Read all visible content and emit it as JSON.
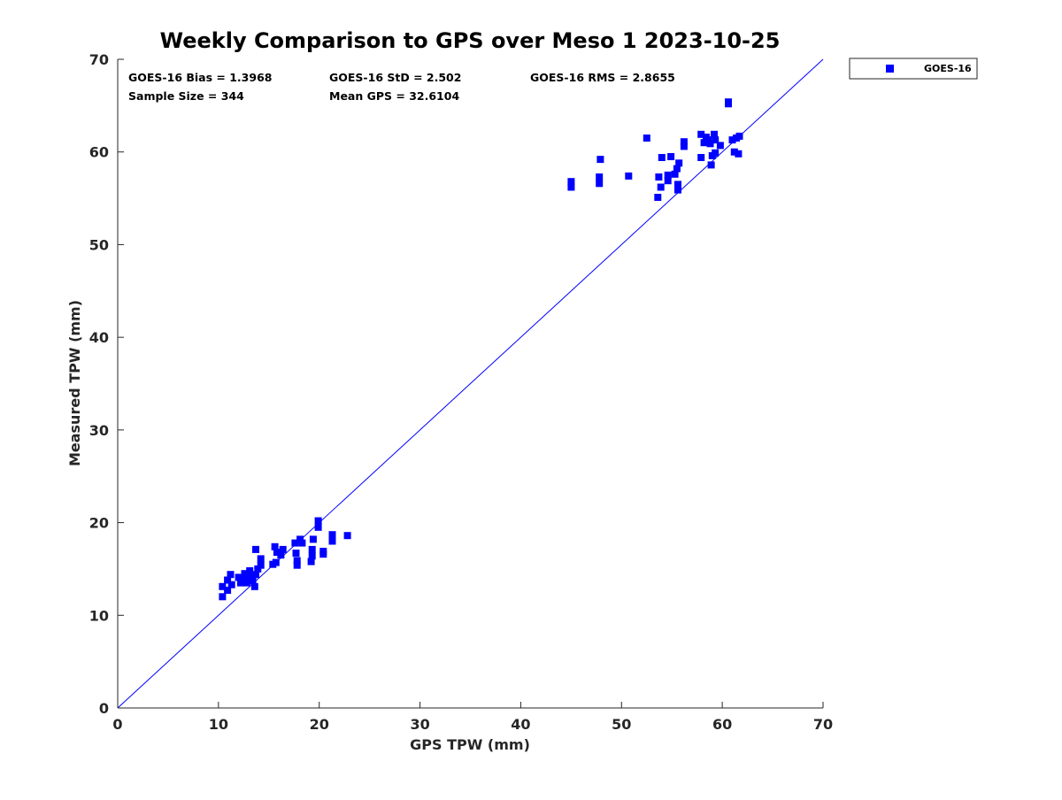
{
  "chart_data": {
    "type": "scatter",
    "title": "Weekly Comparison to GPS over Meso 1 2023-10-25",
    "xlabel": "GPS TPW (mm)",
    "ylabel": "Measured TPW (mm)",
    "xlim": [
      0,
      70
    ],
    "ylim": [
      0,
      70
    ],
    "xticks": [
      0,
      10,
      20,
      30,
      40,
      50,
      60,
      70
    ],
    "yticks": [
      0,
      10,
      20,
      30,
      40,
      50,
      60,
      70
    ],
    "xtick_labels": [
      "0",
      "10",
      "20",
      "30",
      "40",
      "50",
      "60",
      "70"
    ],
    "ytick_labels": [
      "0",
      "10",
      "20",
      "30",
      "40",
      "50",
      "60",
      "70"
    ],
    "grid": false,
    "reference_line": {
      "name": "1:1 line",
      "x": [
        0,
        70
      ],
      "y": [
        0,
        70
      ],
      "color": "#0000ff"
    },
    "legend": {
      "placement": "outside-top-right",
      "entries": [
        "GOES-16"
      ]
    },
    "stats": {
      "bias": "GOES-16 Bias = 1.3968",
      "std": "GOES-16 StD = 2.502",
      "rms": "GOES-16 RMS = 2.8655",
      "sample_size": "Sample Size = 344",
      "mean_gps": "Mean GPS = 32.6104"
    },
    "series": [
      {
        "name": "GOES-16",
        "color": "#0000ff",
        "marker": "square",
        "points": [
          [
            10.4,
            12.0
          ],
          [
            10.4,
            13.1
          ],
          [
            10.9,
            12.7
          ],
          [
            10.9,
            13.8
          ],
          [
            11.2,
            14.4
          ],
          [
            11.3,
            13.3
          ],
          [
            12.0,
            14.1
          ],
          [
            12.2,
            13.5
          ],
          [
            12.5,
            13.8
          ],
          [
            12.6,
            14.5
          ],
          [
            12.8,
            13.5
          ],
          [
            13.1,
            14.2
          ],
          [
            13.1,
            14.8
          ],
          [
            13.4,
            13.7
          ],
          [
            13.6,
            13.1
          ],
          [
            13.7,
            14.4
          ],
          [
            13.7,
            17.1
          ],
          [
            13.9,
            15.0
          ],
          [
            14.2,
            15.4
          ],
          [
            14.2,
            16.1
          ],
          [
            15.4,
            15.5
          ],
          [
            15.6,
            17.4
          ],
          [
            15.7,
            15.7
          ],
          [
            15.8,
            16.8
          ],
          [
            16.2,
            16.5
          ],
          [
            16.4,
            17.1
          ],
          [
            17.6,
            17.8
          ],
          [
            17.7,
            16.7
          ],
          [
            17.8,
            15.4
          ],
          [
            17.8,
            15.9
          ],
          [
            18.1,
            18.2
          ],
          [
            18.3,
            17.8
          ],
          [
            19.2,
            15.8
          ],
          [
            19.3,
            16.4
          ],
          [
            19.3,
            17.1
          ],
          [
            19.4,
            18.2
          ],
          [
            19.9,
            19.5
          ],
          [
            19.9,
            20.2
          ],
          [
            20.4,
            16.6
          ],
          [
            20.4,
            16.9
          ],
          [
            21.3,
            18.0
          ],
          [
            21.3,
            18.7
          ],
          [
            22.8,
            18.6
          ],
          [
            45.0,
            56.2
          ],
          [
            45.0,
            56.8
          ],
          [
            47.8,
            56.6
          ],
          [
            47.8,
            57.3
          ],
          [
            47.9,
            59.2
          ],
          [
            50.7,
            57.4
          ],
          [
            52.5,
            61.5
          ],
          [
            53.6,
            55.1
          ],
          [
            53.7,
            57.3
          ],
          [
            53.9,
            56.2
          ],
          [
            54.0,
            59.4
          ],
          [
            54.6,
            56.9
          ],
          [
            54.6,
            57.5
          ],
          [
            54.9,
            59.5
          ],
          [
            55.3,
            57.6
          ],
          [
            55.5,
            58.2
          ],
          [
            55.6,
            55.9
          ],
          [
            55.6,
            56.5
          ],
          [
            55.7,
            58.8
          ],
          [
            56.2,
            60.6
          ],
          [
            56.2,
            61.1
          ],
          [
            57.9,
            59.4
          ],
          [
            57.9,
            61.9
          ],
          [
            58.2,
            61.0
          ],
          [
            58.4,
            61.6
          ],
          [
            58.6,
            61.3
          ],
          [
            58.8,
            60.9
          ],
          [
            58.9,
            58.6
          ],
          [
            59.0,
            59.6
          ],
          [
            59.2,
            61.9
          ],
          [
            59.3,
            59.9
          ],
          [
            59.3,
            61.3
          ],
          [
            59.8,
            60.7
          ],
          [
            60.6,
            65.2
          ],
          [
            60.6,
            65.4
          ],
          [
            61.0,
            61.3
          ],
          [
            61.2,
            60.0
          ],
          [
            61.4,
            61.5
          ],
          [
            61.6,
            59.8
          ],
          [
            61.7,
            61.7
          ]
        ]
      }
    ]
  }
}
